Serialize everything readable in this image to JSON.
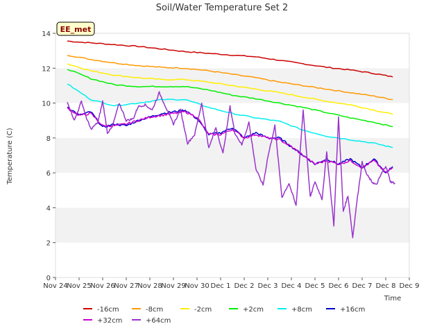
{
  "chart_data": {
    "type": "line",
    "title": "Soil/Water Temperature Set 2",
    "xlabel": "Time",
    "ylabel": "Temperature (C)",
    "station_badge": "EE_met",
    "x_tick_labels": [
      "Nov 24",
      "Nov 25",
      "Nov 26",
      "Nov 27",
      "Nov 28",
      "Nov 29",
      "Nov 30",
      "Dec 1",
      "Dec 2",
      "Dec 3",
      "Dec 4",
      "Dec 5",
      "Dec 6",
      "Dec 7",
      "Dec 8",
      "Dec 9"
    ],
    "y_ticks": [
      0,
      2,
      4,
      6,
      8,
      10,
      12,
      14
    ],
    "ylim": [
      0,
      14
    ],
    "x_start": "2024-11-24",
    "x_end": "2024-12-09",
    "grid": "horizontal bands",
    "legend_position": "bottom",
    "series": [
      {
        "name": "-16cm",
        "color": "#cc0000",
        "x": [
          0.5,
          1.5,
          2.5,
          3.5,
          4.5,
          5.5,
          6.5,
          7.5,
          8.5,
          9.5,
          10.5,
          11.5,
          12.5,
          13.5,
          14.3
        ],
        "values": [
          13.55,
          13.45,
          13.35,
          13.25,
          13.1,
          12.95,
          12.85,
          12.75,
          12.65,
          12.45,
          12.25,
          12.05,
          11.9,
          11.7,
          11.5
        ]
      },
      {
        "name": "-8cm",
        "color": "#ff9900",
        "x": [
          0.5,
          1.5,
          2.5,
          3.5,
          4.5,
          5.5,
          6.5,
          7.5,
          8.5,
          9.5,
          10.5,
          11.5,
          12.5,
          13.5,
          14.3
        ],
        "values": [
          12.75,
          12.5,
          12.3,
          12.15,
          12.05,
          12.0,
          11.85,
          11.65,
          11.45,
          11.2,
          11.0,
          10.8,
          10.6,
          10.4,
          10.2
        ]
      },
      {
        "name": "-2cm",
        "color": "#ffee00",
        "x": [
          0.5,
          1.5,
          2.5,
          3.5,
          4.5,
          5.5,
          6.5,
          7.5,
          8.5,
          9.5,
          10.5,
          11.5,
          12.5,
          13.5,
          14.3
        ],
        "values": [
          12.25,
          11.85,
          11.6,
          11.45,
          11.35,
          11.35,
          11.2,
          11.0,
          10.8,
          10.6,
          10.35,
          10.1,
          9.9,
          9.6,
          9.35
        ]
      },
      {
        "name": "+2cm",
        "color": "#00ee00",
        "x": [
          0.5,
          1.5,
          2.5,
          3.5,
          4.5,
          5.5,
          6.5,
          7.5,
          8.5,
          9.5,
          10.5,
          11.5,
          12.5,
          13.5,
          14.3
        ],
        "values": [
          11.95,
          11.4,
          11.05,
          10.95,
          10.95,
          10.95,
          10.75,
          10.45,
          10.25,
          10.0,
          9.75,
          9.45,
          9.15,
          8.9,
          8.65
        ]
      },
      {
        "name": "+8cm",
        "color": "#00eeee",
        "x": [
          0.5,
          1.5,
          2.5,
          3.5,
          4.5,
          5.5,
          6.5,
          7.5,
          8.5,
          9.5,
          10.5,
          11.5,
          12.5,
          13.5,
          14.3
        ],
        "values": [
          11.1,
          10.2,
          9.85,
          10.0,
          10.2,
          10.2,
          9.75,
          9.4,
          9.15,
          8.95,
          8.45,
          8.1,
          7.9,
          7.7,
          7.45
        ]
      },
      {
        "name": "+16cm",
        "color": "#0000cc",
        "x": [
          0.5,
          1.0,
          1.5,
          2.0,
          2.5,
          3.0,
          3.5,
          4.0,
          4.5,
          5.0,
          5.5,
          6.0,
          6.5,
          7.0,
          7.5,
          8.0,
          8.5,
          9.0,
          9.5,
          10.0,
          10.5,
          11.0,
          11.5,
          12.0,
          12.5,
          13.0,
          13.5,
          14.0,
          14.3
        ],
        "values": [
          9.8,
          9.3,
          9.5,
          8.6,
          8.8,
          8.7,
          9.0,
          9.2,
          9.4,
          9.5,
          9.6,
          9.1,
          8.2,
          8.3,
          8.6,
          8.0,
          8.3,
          8.0,
          8.0,
          7.5,
          7.0,
          6.5,
          6.8,
          6.5,
          6.8,
          6.3,
          6.8,
          6.0,
          6.35
        ]
      },
      {
        "name": "+32cm",
        "color": "#cc00cc",
        "x": [
          0.5,
          1.0,
          1.5,
          2.0,
          2.5,
          3.0,
          3.5,
          4.0,
          4.5,
          5.0,
          5.5,
          6.0,
          6.5,
          7.0,
          7.5,
          8.0,
          8.5,
          9.0,
          9.5,
          10.0,
          10.5,
          11.0,
          11.5,
          12.0,
          12.5,
          13.0,
          13.5,
          14.0,
          14.3
        ],
        "values": [
          9.7,
          9.3,
          9.4,
          8.7,
          8.7,
          8.8,
          9.0,
          9.2,
          9.3,
          9.4,
          9.5,
          9.2,
          8.2,
          8.2,
          8.5,
          8.0,
          8.2,
          8.0,
          7.9,
          7.5,
          7.0,
          6.5,
          6.7,
          6.5,
          6.7,
          6.3,
          6.7,
          6.0,
          6.3
        ]
      },
      {
        "name": "+64cm",
        "color": "#9933cc",
        "x": [
          0.5,
          0.8,
          1.1,
          1.3,
          1.5,
          1.8,
          2.0,
          2.2,
          2.4,
          2.7,
          3.0,
          3.3,
          3.5,
          3.8,
          4.1,
          4.4,
          4.7,
          5.0,
          5.3,
          5.6,
          5.9,
          6.2,
          6.5,
          6.8,
          7.1,
          7.4,
          7.6,
          7.9,
          8.2,
          8.5,
          8.8,
          9.0,
          9.3,
          9.6,
          9.9,
          10.2,
          10.5,
          10.8,
          11.0,
          11.3,
          11.5,
          11.8,
          12.0,
          12.2,
          12.4,
          12.6,
          12.8,
          13.0,
          13.2,
          13.4,
          13.6,
          13.8,
          14.0,
          14.2,
          14.4
        ],
        "values": [
          10.1,
          9.0,
          10.1,
          9.2,
          8.5,
          8.9,
          10.1,
          8.3,
          8.6,
          10.0,
          9.0,
          9.1,
          9.8,
          9.9,
          9.6,
          10.6,
          9.7,
          8.8,
          9.6,
          7.7,
          8.2,
          10.0,
          7.4,
          8.6,
          7.1,
          9.8,
          8.3,
          7.6,
          8.9,
          6.2,
          5.3,
          6.9,
          8.7,
          4.6,
          5.4,
          4.1,
          9.6,
          4.6,
          5.5,
          4.5,
          7.2,
          3.0,
          9.2,
          3.8,
          4.7,
          2.3,
          4.6,
          6.6,
          5.9,
          5.5,
          5.3,
          5.9,
          6.4,
          5.5,
          5.4
        ]
      }
    ]
  }
}
